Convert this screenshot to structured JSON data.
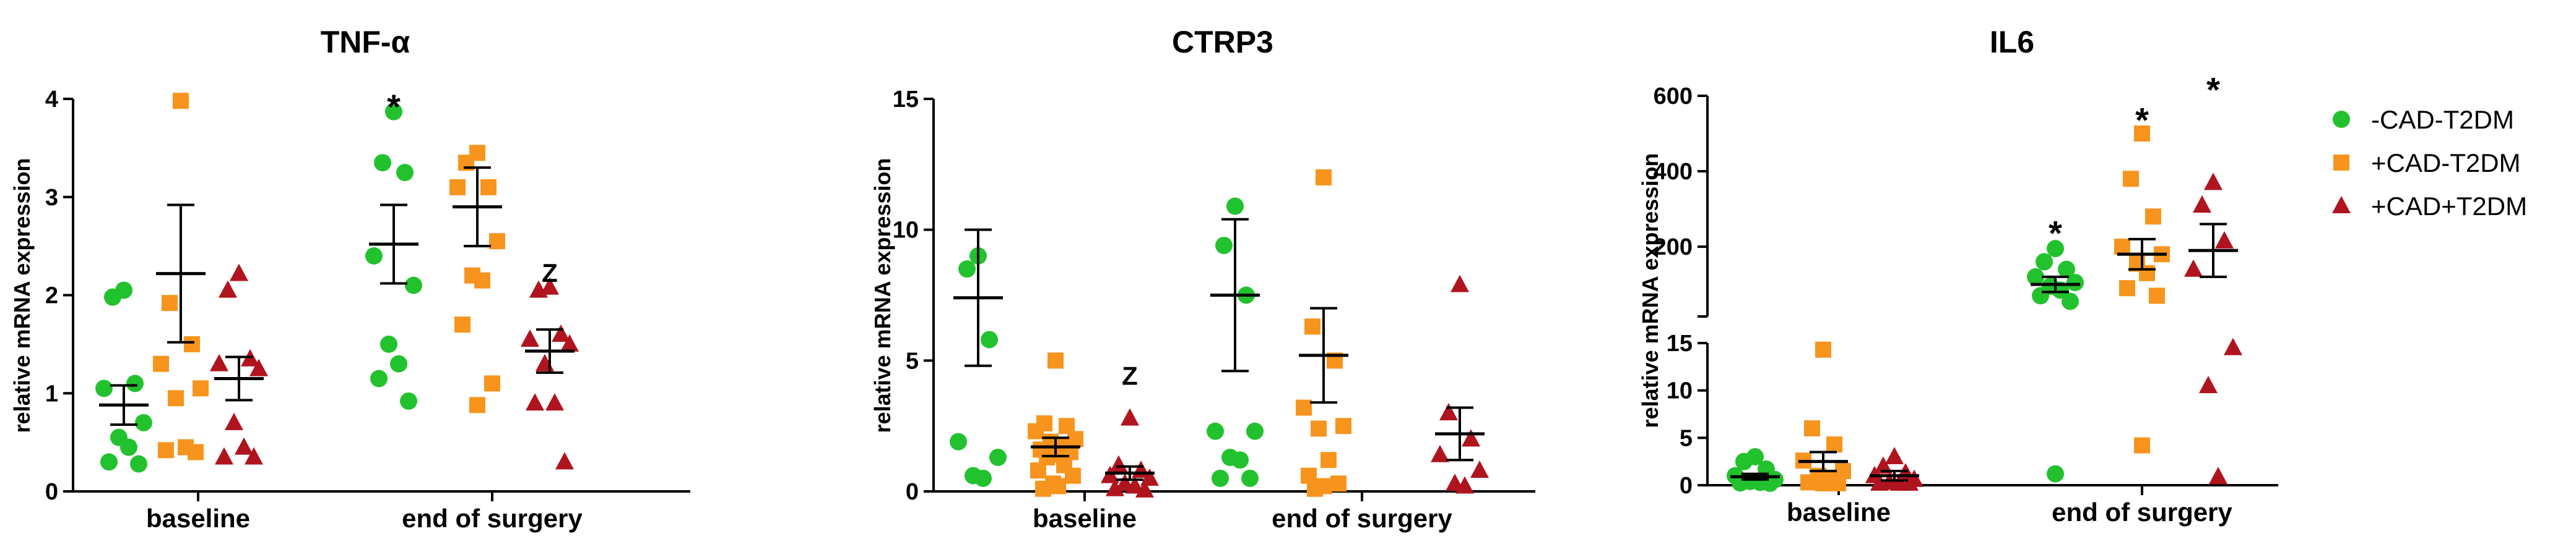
{
  "chart_data": [
    {
      "type": "scatter",
      "title": "TNF-α",
      "xlabel": "",
      "ylabel": "relative mRNA expression",
      "ylim": [
        0,
        4
      ],
      "yticks": [
        "0",
        "1",
        "2",
        "3",
        "4"
      ],
      "categories": [
        "baseline",
        "end of surgery"
      ],
      "series": [
        {
          "name": "-CAD-T2DM",
          "points": [
            [
              2.05,
              1.98,
              1.1,
              1.05,
              0.7,
              0.55,
              0.45,
              0.3,
              0.28
            ],
            [
              3.87,
              3.35,
              3.25,
              2.4,
              2.1,
              1.5,
              1.3,
              1.15,
              0.92
            ]
          ],
          "mean": [
            0.88,
            2.52
          ],
          "error": [
            0.2,
            0.4
          ]
        },
        {
          "name": "+CAD-T2DM",
          "points": [
            [
              3.98,
              1.92,
              1.5,
              1.3,
              1.05,
              0.95,
              0.45,
              0.42,
              0.4
            ],
            [
              3.45,
              3.35,
              3.1,
              3.1,
              2.55,
              2.2,
              2.15,
              1.7,
              1.1,
              0.88
            ]
          ],
          "mean": [
            2.22,
            2.9
          ],
          "error": [
            0.7,
            0.4
          ]
        },
        {
          "name": "+CAD+T2DM",
          "points": [
            [
              2.22,
              2.05,
              1.35,
              1.3,
              1.25,
              0.7,
              0.45,
              0.35,
              0.35
            ],
            [
              2.08,
              2.05,
              1.6,
              1.55,
              1.5,
              1.3,
              0.9,
              0.9,
              0.3
            ]
          ],
          "mean": [
            1.15,
            1.43
          ],
          "error": [
            0.22,
            0.22
          ]
        }
      ],
      "annotations": [
        {
          "text": "*",
          "series": "-CAD-T2DM",
          "category": "end of surgery",
          "y": 4.05
        },
        {
          "text": "Z",
          "series": "+CAD+T2DM",
          "category": "end of surgery",
          "y": 2.25
        }
      ]
    },
    {
      "type": "scatter",
      "title": "CTRP3",
      "xlabel": "",
      "ylabel": "relative mRNA expression",
      "ylim": [
        0,
        15
      ],
      "yticks": [
        "0",
        "5",
        "10",
        "15"
      ],
      "categories": [
        "baseline",
        "end of surgery"
      ],
      "series": [
        {
          "name": "-CAD-T2DM",
          "points": [
            [
              9.0,
              8.5,
              5.8,
              1.9,
              1.3,
              0.6,
              0.5
            ],
            [
              10.9,
              9.4,
              7.5,
              2.3,
              2.3,
              1.3,
              1.2,
              0.5,
              0.5
            ]
          ],
          "mean": [
            7.4,
            7.5
          ],
          "error": [
            2.6,
            2.9
          ]
        },
        {
          "name": "+CAD-T2DM",
          "points": [
            [
              5.0,
              2.6,
              2.5,
              2.3,
              2.0,
              1.9,
              1.7,
              1.6,
              1.5,
              1.4,
              1.3,
              1.0,
              0.8,
              0.6,
              0.3,
              0.2,
              0.1
            ],
            [
              12.0,
              6.3,
              5.0,
              3.2,
              2.5,
              2.4,
              1.2,
              0.6,
              0.3,
              0.2,
              0.1
            ]
          ],
          "mean": [
            1.7,
            5.2
          ],
          "error": [
            0.35,
            1.8
          ]
        },
        {
          "name": "+CAD+T2DM",
          "points": [
            [
              2.8,
              1.0,
              0.8,
              0.6,
              0.5,
              0.3,
              0.2,
              0.1,
              0.05
            ],
            [
              7.9,
              3.0,
              2.0,
              1.4,
              0.8,
              0.3,
              0.2
            ]
          ],
          "mean": [
            0.7,
            2.2
          ],
          "error": [
            0.25,
            1.0
          ]
        }
      ],
      "annotations": [
        {
          "text": "Z",
          "series": "+CAD+T2DM",
          "category": "baseline",
          "y": 4.5
        }
      ]
    },
    {
      "type": "scatter",
      "title": "IL6",
      "xlabel": "",
      "ylabel": "relative mRNA expression",
      "ylim": [
        0,
        600
      ],
      "broken_axis": {
        "lower": [
          0,
          15
        ],
        "upper": [
          15,
          600
        ]
      },
      "yticks": [
        "0",
        "5",
        "10",
        "15",
        "200",
        "400",
        "600"
      ],
      "categories": [
        "baseline",
        "end of surgery"
      ],
      "series": [
        {
          "name": "-CAD-T2DM",
          "points": [
            [
              3.0,
              2.5,
              1.7,
              1.0,
              0.6,
              0.4,
              0.3,
              0.25,
              0.2
            ],
            [
              195,
              160,
              140,
              120,
              105,
              95,
              85,
              70,
              55,
              1.2
            ]
          ],
          "mean": [
            0.9,
            100
          ],
          "error": [
            0.3,
            20
          ]
        },
        {
          "name": "+CAD-T2DM",
          "points": [
            [
              14.3,
              6.0,
              4.3,
              2.6,
              1.5,
              1.0,
              0.6,
              0.3,
              0.2,
              0.2
            ],
            [
              500,
              380,
              280,
              200,
              180,
              155,
              130,
              90,
              70,
              4.2
            ]
          ],
          "mean": [
            2.5,
            180
          ],
          "error": [
            1.0,
            40
          ]
        },
        {
          "name": "+CAD+T2DM",
          "points": [
            [
              3.0,
              2.0,
              1.3,
              1.0,
              0.6,
              0.3,
              0.2,
              0.2,
              0.2
            ],
            [
              370,
              310,
              215,
              140,
              14.5,
              10.5,
              0.9
            ]
          ],
          "mean": [
            1.0,
            190
          ],
          "error": [
            0.5,
            70
          ]
        }
      ],
      "annotations": [
        {
          "text": "*",
          "series": "-CAD-T2DM",
          "category": "end of surgery",
          "y": 270
        },
        {
          "text": "*",
          "series": "+CAD-T2DM",
          "category": "end of surgery",
          "y": 570
        },
        {
          "text": "*",
          "series": "+CAD+T2DM",
          "category": "end of surgery",
          "y": 650
        }
      ]
    }
  ],
  "legend": [
    {
      "name": "-CAD-T2DM",
      "marker": "circle",
      "color": "#22c22e"
    },
    {
      "name": "+CAD-T2DM",
      "marker": "square",
      "color": "#f7941d"
    },
    {
      "name": "+CAD+T2DM",
      "marker": "triangle",
      "color": "#b0141e"
    }
  ]
}
